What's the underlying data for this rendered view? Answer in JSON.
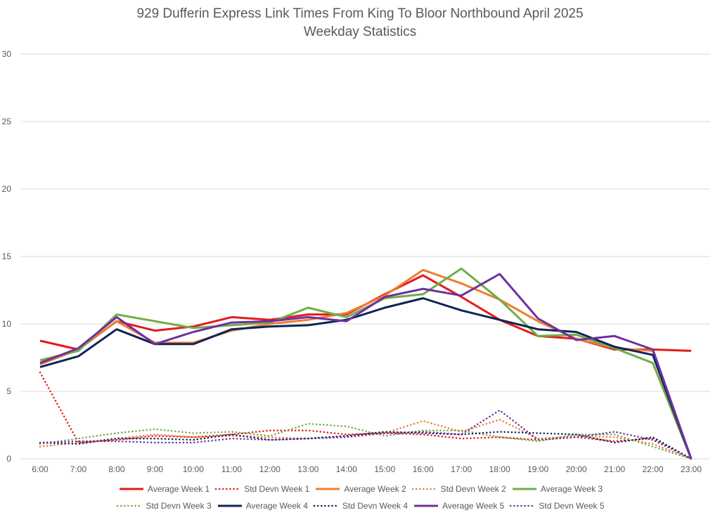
{
  "chart_data": {
    "type": "line",
    "title": "929 Dufferin Express Link Times From King To Bloor Northbound April 2025",
    "subtitle": "Weekday Statistics",
    "xlabel": "",
    "ylabel": "",
    "ylim": [
      0,
      30
    ],
    "yticks": [
      "0",
      "5",
      "10",
      "15",
      "20",
      "25",
      "30"
    ],
    "ytick_values": [
      0,
      5,
      10,
      15,
      20,
      25,
      30
    ],
    "grid": true,
    "legend_position": "bottom",
    "categories": [
      "6:00",
      "7:00",
      "8:00",
      "9:00",
      "10:00",
      "11:00",
      "12:00",
      "13:00",
      "14:00",
      "15:00",
      "16:00",
      "17:00",
      "18:00",
      "19:00",
      "20:00",
      "21:00",
      "22:00",
      "23:00"
    ],
    "series": [
      {
        "name": "Average Week 1",
        "color": "#e31a1c",
        "style": "solid",
        "values": [
          8.75,
          8.1,
          10.2,
          9.5,
          9.8,
          10.5,
          10.3,
          10.7,
          10.7,
          12.2,
          13.6,
          12.0,
          10.3,
          9.1,
          8.9,
          8.1,
          8.1,
          8.0
        ]
      },
      {
        "name": "Std Devn Week 1",
        "color": "#e31a1c",
        "style": "dotted",
        "values": [
          6.4,
          1.2,
          1.4,
          1.7,
          1.6,
          1.8,
          2.1,
          2.1,
          1.8,
          1.9,
          1.8,
          1.5,
          1.6,
          1.4,
          1.6,
          1.3,
          1.5,
          0
        ]
      },
      {
        "name": "Average Week 2",
        "color": "#ed7d31",
        "style": "solid",
        "values": [
          7.0,
          8.1,
          10.2,
          8.6,
          8.6,
          9.5,
          10.0,
          10.3,
          10.8,
          12.1,
          14.0,
          13.0,
          11.8,
          10.2,
          8.9,
          8.2,
          8.0,
          0
        ]
      },
      {
        "name": "Std Devn Week 2",
        "color": "#ed7d31",
        "style": "dotted",
        "values": [
          0.9,
          1.2,
          1.5,
          1.8,
          1.6,
          1.7,
          1.6,
          1.5,
          1.7,
          1.9,
          2.8,
          2.0,
          2.9,
          1.5,
          1.7,
          1.6,
          1.1,
          0
        ]
      },
      {
        "name": "Average Week 3",
        "color": "#70ad47",
        "style": "solid",
        "values": [
          7.3,
          8.0,
          10.7,
          10.2,
          9.7,
          9.9,
          10.1,
          11.2,
          10.5,
          11.9,
          12.2,
          14.1,
          11.8,
          9.1,
          9.2,
          8.2,
          7.1,
          0
        ]
      },
      {
        "name": "Std Devn Week 3",
        "color": "#70ad47",
        "style": "dotted",
        "values": [
          1.1,
          1.5,
          1.9,
          2.2,
          1.9,
          2.0,
          1.7,
          2.6,
          2.4,
          1.7,
          2.1,
          2.1,
          1.6,
          1.3,
          1.8,
          1.8,
          0.9,
          0
        ]
      },
      {
        "name": "Average Week 4",
        "color": "#0f2454",
        "style": "solid",
        "values": [
          6.8,
          7.6,
          9.6,
          8.5,
          8.5,
          9.6,
          9.8,
          9.9,
          10.3,
          11.2,
          11.9,
          11.0,
          10.3,
          9.6,
          9.4,
          8.3,
          7.7,
          0
        ]
      },
      {
        "name": "Std Devn Week 4",
        "color": "#0f2454",
        "style": "dotted",
        "values": [
          1.2,
          1.1,
          1.5,
          1.5,
          1.4,
          1.8,
          1.4,
          1.5,
          1.7,
          2.0,
          1.9,
          1.8,
          2.0,
          1.9,
          1.8,
          1.2,
          1.6,
          0
        ]
      },
      {
        "name": "Average Week 5",
        "color": "#7030a0",
        "style": "solid",
        "values": [
          7.1,
          8.2,
          10.5,
          8.5,
          9.4,
          10.1,
          10.2,
          10.5,
          10.2,
          12.0,
          12.6,
          12.1,
          13.7,
          10.4,
          8.8,
          9.1,
          8.1,
          0
        ]
      },
      {
        "name": "Std Devn Week 5",
        "color": "#7030a0",
        "style": "dotted",
        "values": [
          1.2,
          1.3,
          1.3,
          1.2,
          1.2,
          1.5,
          1.4,
          1.5,
          1.6,
          1.9,
          2.0,
          1.8,
          3.6,
          1.4,
          1.6,
          2.0,
          1.4,
          0
        ]
      }
    ]
  }
}
